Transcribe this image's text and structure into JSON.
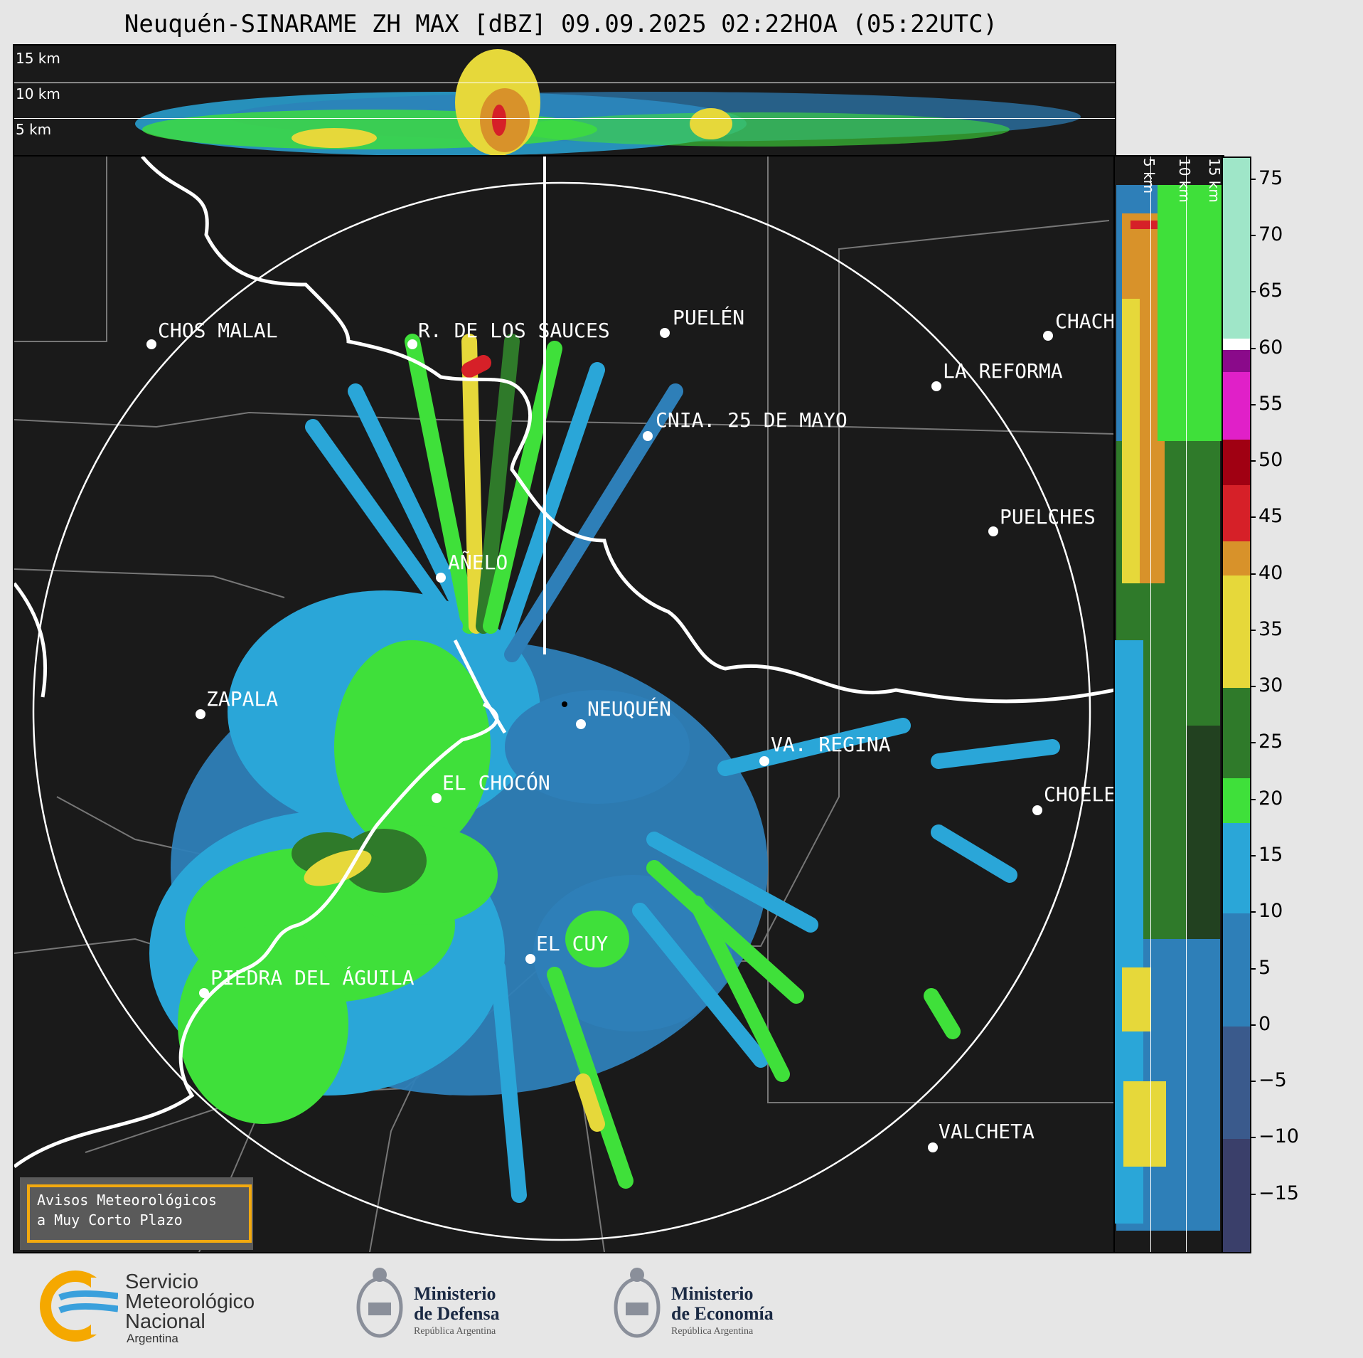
{
  "title": "Neuquén-SINARAME ZH MAX [dBZ] 09.09.2025 02:22HOA (05:22UTC)",
  "top_panel": {
    "km_labels": [
      "15 km",
      "10 km",
      "5 km"
    ]
  },
  "side_panel": {
    "km_labels": [
      "5 km",
      "10 km",
      "15 km"
    ]
  },
  "cities": [
    {
      "name": "CHOS MALAL"
    },
    {
      "name": "R. DE LOS SAUCES"
    },
    {
      "name": "PUELÉN"
    },
    {
      "name": "CHACH"
    },
    {
      "name": "LA REFORMA"
    },
    {
      "name": "CNIA. 25 DE MAYO"
    },
    {
      "name": "PUELCHES"
    },
    {
      "name": "AÑELO"
    },
    {
      "name": "ZAPALA"
    },
    {
      "name": "NEUQUÉN"
    },
    {
      "name": "VA. REGINA"
    },
    {
      "name": "EL CHOCÓN"
    },
    {
      "name": "CHOELE"
    },
    {
      "name": "EL CUY"
    },
    {
      "name": "PIEDRA DEL ÁGUILA"
    },
    {
      "name": "VALCHETA"
    }
  ],
  "colorbar": {
    "unit": "dBZ",
    "ticks": [
      "75",
      "70",
      "65",
      "60",
      "55",
      "50",
      "45",
      "40",
      "35",
      "30",
      "25",
      "20",
      "15",
      "10",
      "5",
      "0",
      "−5",
      "−10",
      "−15"
    ],
    "stops": [
      {
        "from": -20,
        "to": -10,
        "color": "#3a3f6a"
      },
      {
        "from": -10,
        "to": 0,
        "color": "#3a5a8c"
      },
      {
        "from": 0,
        "to": 10,
        "color": "#2e7fb8"
      },
      {
        "from": 10,
        "to": 18,
        "color": "#2aa6d8"
      },
      {
        "from": 18,
        "to": 22,
        "color": "#3fe03a"
      },
      {
        "from": 22,
        "to": 30,
        "color": "#2f7a2a"
      },
      {
        "from": 30,
        "to": 40,
        "color": "#e6d83a"
      },
      {
        "from": 40,
        "to": 43,
        "color": "#d8922a"
      },
      {
        "from": 43,
        "to": 48,
        "color": "#d62028"
      },
      {
        "from": 48,
        "to": 52,
        "color": "#a00012"
      },
      {
        "from": 52,
        "to": 58,
        "color": "#e020c8"
      },
      {
        "from": 58,
        "to": 60,
        "color": "#8a0a8a"
      },
      {
        "from": 60,
        "to": 61,
        "color": "#ffffff"
      },
      {
        "from": 61,
        "to": 77,
        "color": "#9fe6c8"
      }
    ]
  },
  "avisos": {
    "line1": "Avisos Meteorológicos",
    "line2": "a Muy Corto Plazo"
  },
  "logos": {
    "smn": {
      "line1": "Servicio",
      "line2": "Meteorológico",
      "line3": "Nacional",
      "line4": "Argentina"
    },
    "defensa": {
      "line1": "Ministerio",
      "line2": "de Defensa",
      "line3": "República Argentina"
    },
    "economia": {
      "line1": "Ministerio",
      "line2": "de Economía",
      "line3": "República Argentina"
    }
  },
  "colors": {
    "background": "#1a1a1a",
    "page": "#e6e6e6",
    "avisos_border": "#f2a90f"
  }
}
